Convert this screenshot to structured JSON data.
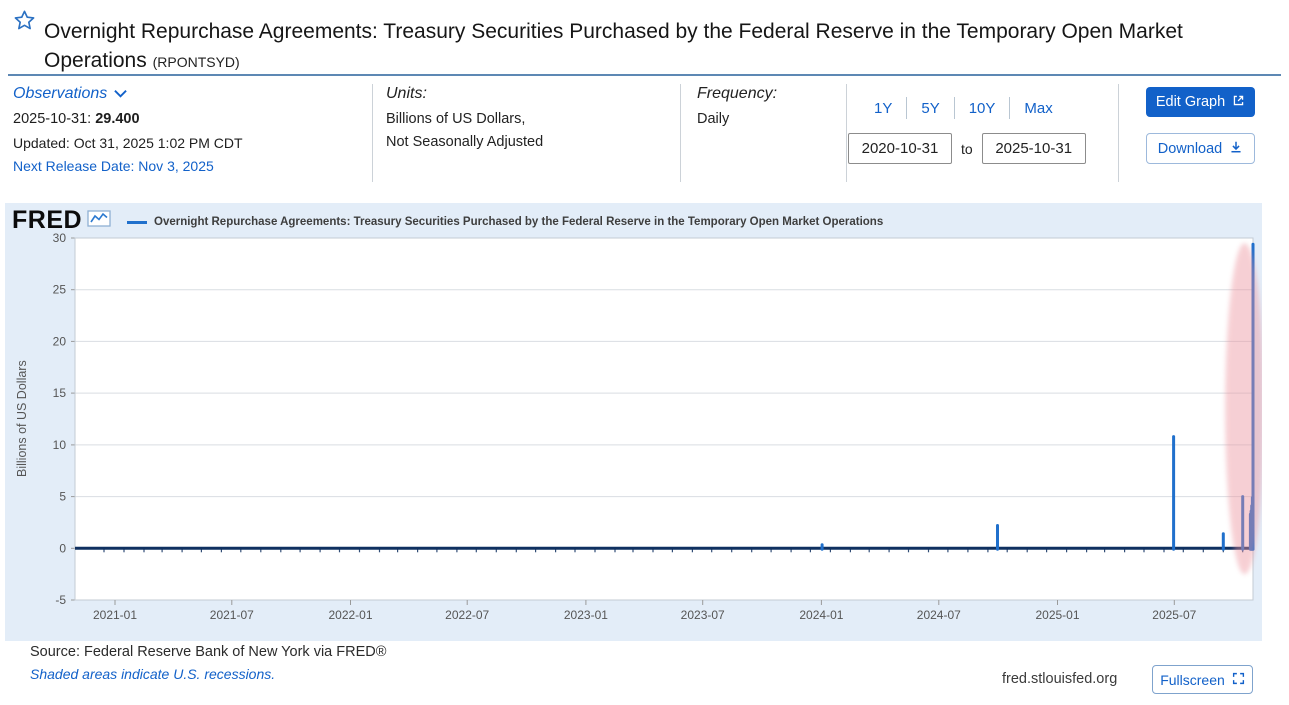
{
  "header": {
    "title": "Overnight Repurchase Agreements: Treasury Securities Purchased by the Federal Reserve in the Temporary Open Market Operations",
    "ticker": "(RPONTSYD)"
  },
  "meta": {
    "observations": {
      "label": "Observations",
      "latest_date": "2025-10-31:",
      "latest_value": "29.400",
      "updated": "Updated: Oct 31, 2025 1:02 PM CDT",
      "next_release": "Next Release Date: Nov 3, 2025"
    },
    "units": {
      "label": "Units:",
      "line1": "Billions of US Dollars,",
      "line2": "Not Seasonally Adjusted"
    },
    "frequency": {
      "label": "Frequency:",
      "value": "Daily"
    },
    "range": {
      "buttons": [
        "1Y",
        "5Y",
        "10Y",
        "Max"
      ],
      "start": "2020-10-31",
      "to_label": "to",
      "end": "2025-10-31"
    },
    "actions": {
      "edit_graph": "Edit Graph",
      "download": "Download"
    }
  },
  "chart": {
    "brand": "FRED",
    "legend": "Overnight Repurchase Agreements: Treasury Securities Purchased by the Federal Reserve in the Temporary Open Market Operations"
  },
  "chart_data": {
    "type": "line",
    "title": "Overnight Repurchase Agreements: Treasury Securities Purchased by the Federal Reserve in the Temporary Open Market Operations",
    "ylabel": "Billions of US Dollars",
    "ylim": [
      -5,
      30
    ],
    "yticks": [
      30,
      25,
      20,
      15,
      10,
      5,
      0,
      -5
    ],
    "x_start": "2020-10-31",
    "x_end": "2025-10-31",
    "xtick_dates": [
      "2021-01-01",
      "2021-07-01",
      "2022-01-01",
      "2022-07-01",
      "2023-01-01",
      "2023-07-01",
      "2024-01-01",
      "2024-07-01",
      "2025-01-01",
      "2025-07-01"
    ],
    "xtick_labels": [
      "2021-01",
      "2021-07",
      "2022-01",
      "2022-07",
      "2023-01",
      "2023-07",
      "2024-01",
      "2024-07",
      "2025-01",
      "2025-07"
    ],
    "baseline_value": 0,
    "spikes": [
      {
        "date": "2024-01-02",
        "value": 0.35
      },
      {
        "date": "2024-09-30",
        "value": 2.2
      },
      {
        "date": "2025-06-30",
        "value": 10.8
      },
      {
        "date": "2025-09-15",
        "value": 1.4
      },
      {
        "date": "2025-10-15",
        "value": 5.0
      },
      {
        "date": "2025-10-27",
        "value": 3.3
      },
      {
        "date": "2025-10-28",
        "value": 3.6
      },
      {
        "date": "2025-10-29",
        "value": 4.1
      },
      {
        "date": "2025-10-30",
        "value": 4.9
      },
      {
        "date": "2025-10-31",
        "value": 29.4
      }
    ],
    "highlight": {
      "shape": "ellipse",
      "date_center": "2025-10-18",
      "half_width_days": 30,
      "y_center": 13.5,
      "y_half": 16,
      "color": "#ec8f9a",
      "opacity": 0.42
    },
    "grid": "horizontal-only",
    "legend_position": "top"
  },
  "footer": {
    "source": "Source: Federal Reserve Bank of New York via FRED®",
    "recessions_note": "Shaded areas indicate U.S. recessions.",
    "site": "fred.stlouisfed.org",
    "fullscreen": "Fullscreen"
  },
  "icons": {
    "favorite": "star-outline",
    "observations_chevron": "chevron-down",
    "edit_graph": "external-link-box",
    "download": "download-arrow",
    "fullscreen": "expand-corners",
    "fred_logo_chart": "line-chart-box"
  },
  "colors": {
    "accent": "#1261c9",
    "line": "#2070cc",
    "baseline": "#0f3060",
    "highlight": "#ec8f9a",
    "panel_bg": "#e3edf8",
    "header_rule": "#5d88b4"
  }
}
